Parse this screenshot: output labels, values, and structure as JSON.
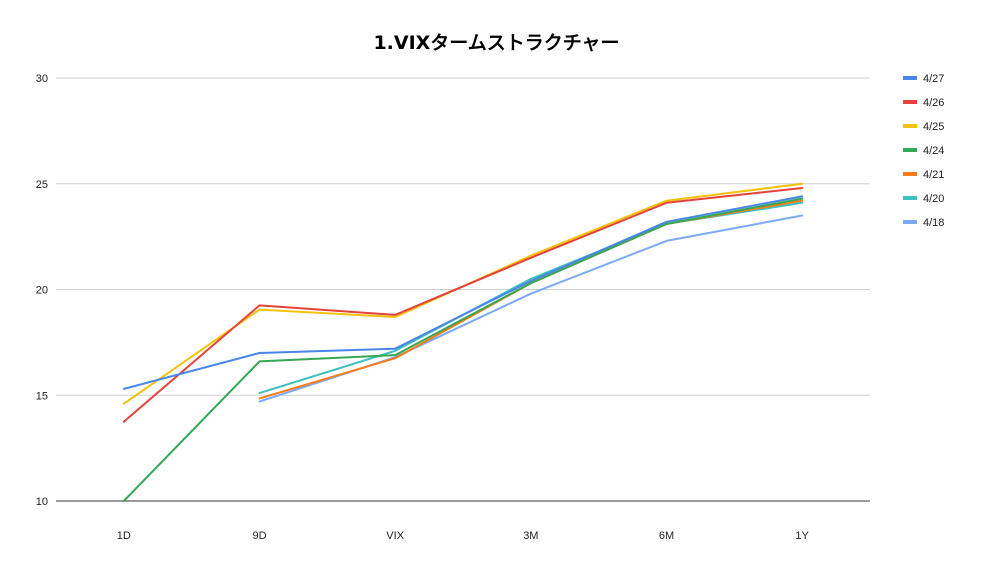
{
  "chart_data": {
    "type": "line",
    "title": "1.VIXタームストラクチャー",
    "xlabel": "",
    "ylabel": "",
    "categories": [
      "1D",
      "9D",
      "VIX",
      "3M",
      "6M",
      "1Y"
    ],
    "ylim": [
      10,
      30
    ],
    "yticks": [
      10,
      15,
      20,
      25,
      30
    ],
    "grid": true,
    "legend_position": "right",
    "series": [
      {
        "name": "4/27",
        "color": "#4a86e8",
        "values": [
          15.3,
          17.0,
          17.2,
          20.4,
          23.2,
          24.4
        ]
      },
      {
        "name": "4/26",
        "color": "#e5433a",
        "values": [
          13.75,
          19.25,
          18.8,
          21.5,
          24.1,
          24.8
        ]
      },
      {
        "name": "4/25",
        "color": "#f4c20d",
        "values": [
          14.6,
          19.05,
          18.7,
          21.6,
          24.2,
          25.0
        ]
      },
      {
        "name": "4/24",
        "color": "#34a853",
        "values": [
          10.0,
          16.6,
          16.9,
          20.3,
          23.1,
          24.3
        ]
      },
      {
        "name": "4/21",
        "color": "#fa7b17",
        "values": [
          null,
          14.85,
          16.75,
          20.3,
          23.1,
          24.2
        ]
      },
      {
        "name": "4/20",
        "color": "#3fbfbf",
        "values": [
          null,
          15.1,
          17.1,
          20.5,
          23.1,
          24.1
        ]
      },
      {
        "name": "4/18",
        "color": "#7baaf7",
        "values": [
          null,
          14.7,
          16.8,
          19.8,
          22.3,
          23.5
        ]
      }
    ]
  }
}
